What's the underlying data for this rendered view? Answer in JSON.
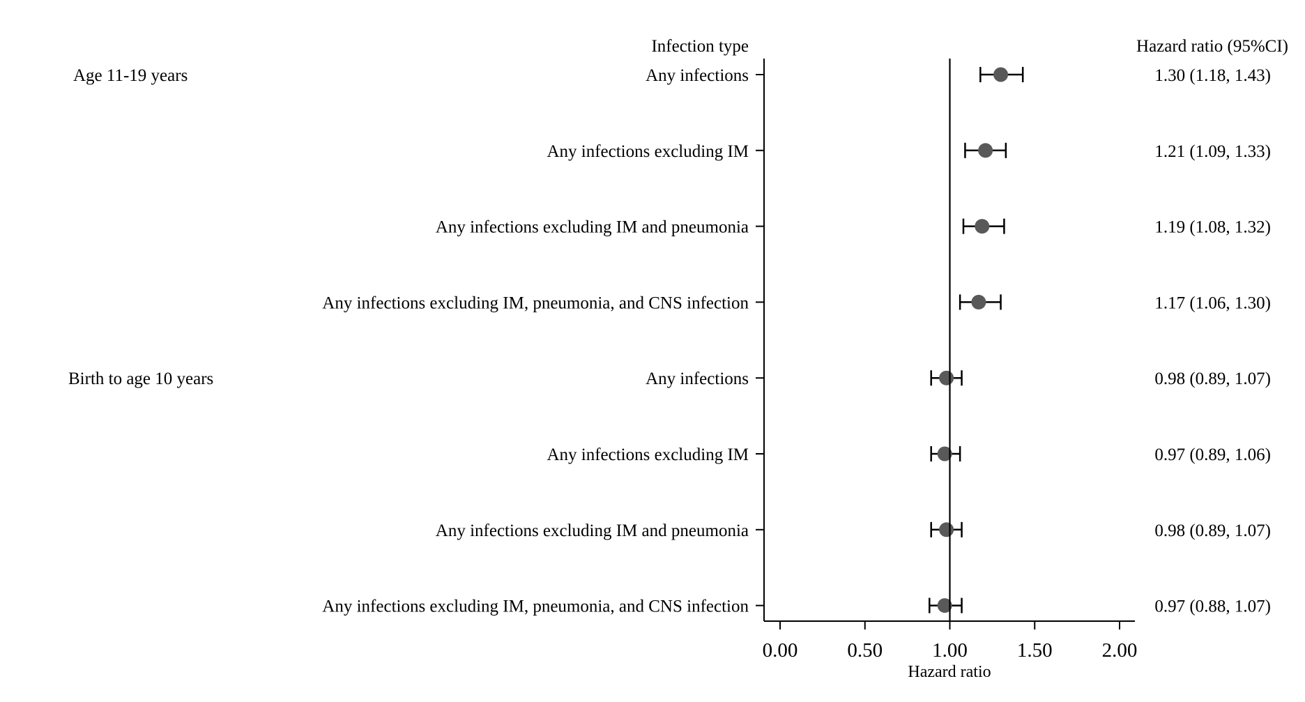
{
  "chart_data": {
    "type": "forest",
    "xlabel": "Hazard ratio",
    "xlim": [
      0.0,
      2.0
    ],
    "xticks": [
      0.0,
      0.5,
      1.0,
      1.5,
      2.0
    ],
    "xtick_labels": [
      "0.00",
      "0.50",
      "1.00",
      "1.50",
      "2.00"
    ],
    "reference_line": 1.0,
    "column_headers": {
      "label": "Infection type",
      "estimate": "Hazard ratio (95%CI)"
    },
    "groups": [
      {
        "name": "Age 11-19 years",
        "rows": [
          {
            "label": "Any infections",
            "hr": 1.3,
            "lo": 1.18,
            "hi": 1.43,
            "text": "1.30 (1.18, 1.43)"
          },
          {
            "label": "Any infections excluding IM",
            "hr": 1.21,
            "lo": 1.09,
            "hi": 1.33,
            "text": "1.21 (1.09, 1.33)"
          },
          {
            "label": "Any infections excluding IM and pneumonia",
            "hr": 1.19,
            "lo": 1.08,
            "hi": 1.32,
            "text": "1.19 (1.08, 1.32)"
          },
          {
            "label": "Any infections excluding IM, pneumonia, and CNS infection",
            "hr": 1.17,
            "lo": 1.06,
            "hi": 1.3,
            "text": "1.17 (1.06, 1.30)"
          }
        ]
      },
      {
        "name": "Birth to age 10 years",
        "rows": [
          {
            "label": "Any infections",
            "hr": 0.98,
            "lo": 0.89,
            "hi": 1.07,
            "text": "0.98 (0.89, 1.07)"
          },
          {
            "label": "Any infections excluding IM",
            "hr": 0.97,
            "lo": 0.89,
            "hi": 1.06,
            "text": "0.97 (0.89, 1.06)"
          },
          {
            "label": "Any infections excluding IM and pneumonia",
            "hr": 0.98,
            "lo": 0.89,
            "hi": 1.07,
            "text": "0.98 (0.89, 1.07)"
          },
          {
            "label": "Any infections excluding IM, pneumonia, and CNS infection",
            "hr": 0.97,
            "lo": 0.88,
            "hi": 1.07,
            "text": "0.97 (0.88, 1.07)"
          }
        ]
      }
    ],
    "colors": {
      "marker": "#595959",
      "line": "#000000"
    }
  }
}
